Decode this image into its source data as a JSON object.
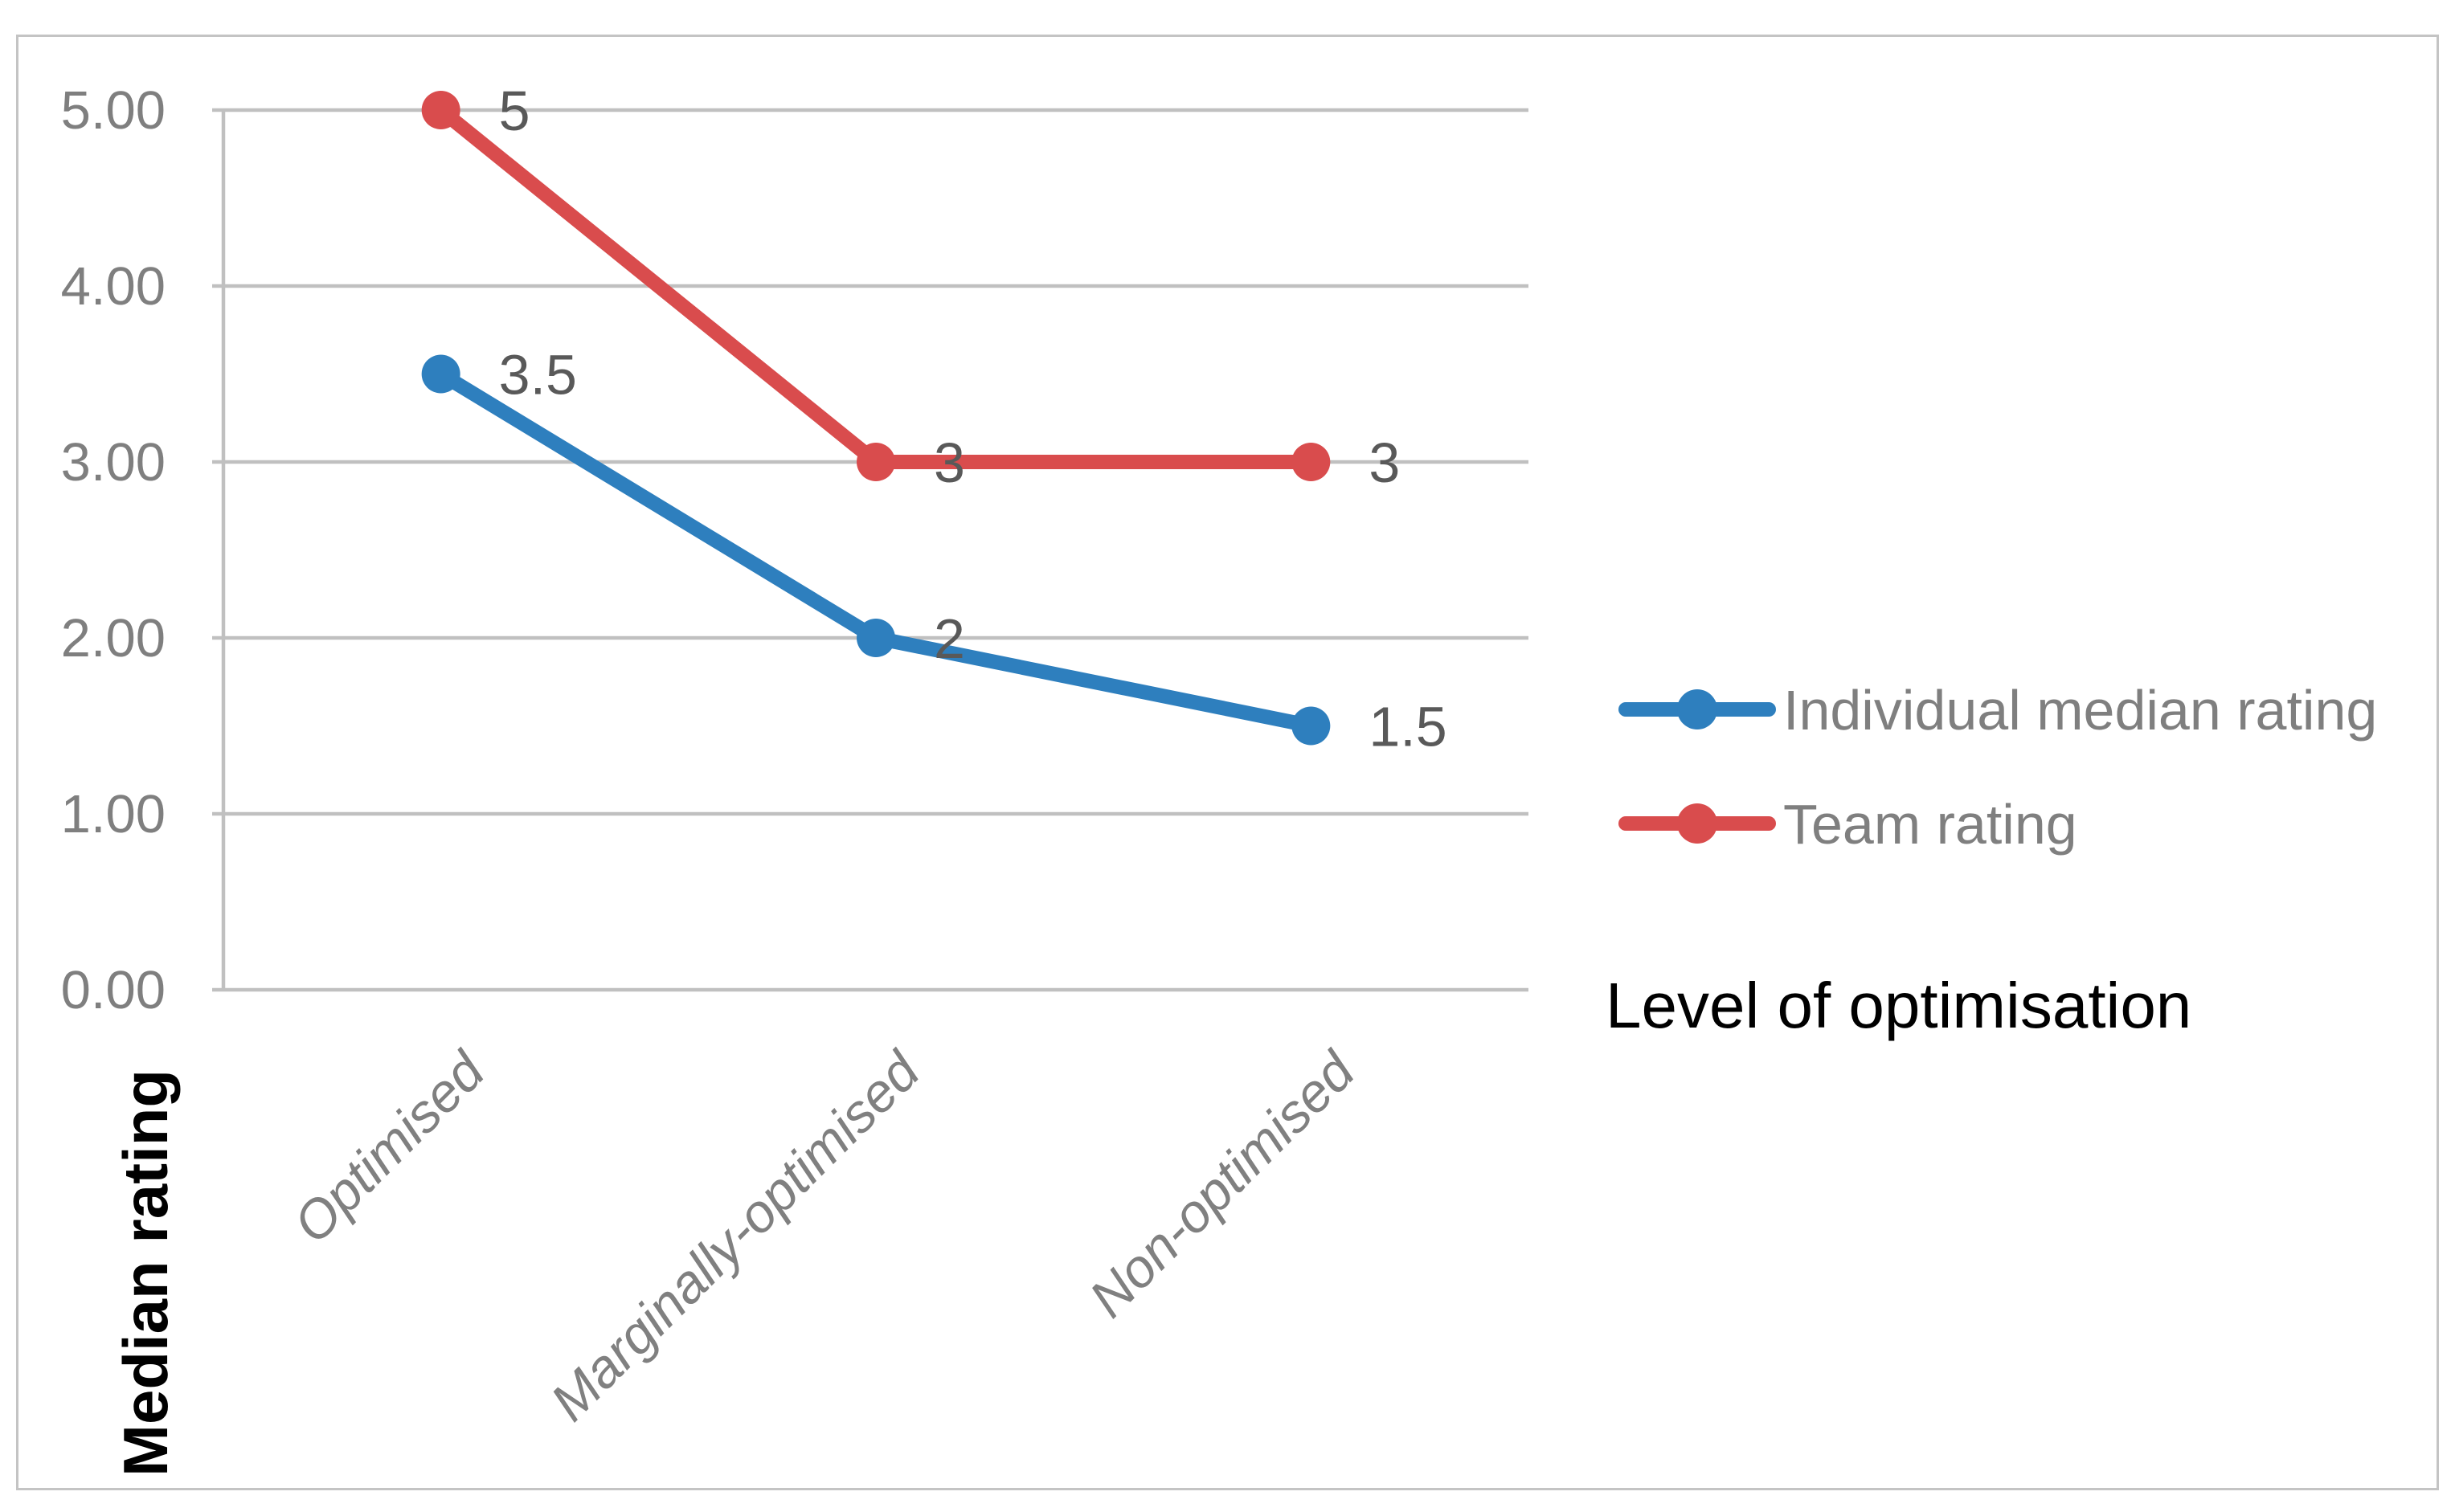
{
  "chart_data": {
    "type": "line",
    "title": "",
    "categories": [
      "Optimised",
      "Marginally-optimised",
      "Non-optimised"
    ],
    "series": [
      {
        "name": "Individual median rating",
        "values": [
          3.5,
          2,
          1.5
        ],
        "data_labels": [
          "3.5",
          "2",
          "1.5"
        ],
        "color": "#2E7FBE"
      },
      {
        "name": "Team rating",
        "values": [
          5,
          3,
          3
        ],
        "data_labels": [
          "5",
          "3",
          "3"
        ],
        "color": "#D94C4D"
      }
    ],
    "xlabel": "Level of optimisation",
    "ylabel": "Median rating",
    "y_ticks": [
      "0.00",
      "1.00",
      "2.00",
      "3.00",
      "4.00",
      "5.00"
    ],
    "ylim": [
      0,
      5
    ],
    "grid": true,
    "legend_position": "right",
    "marker": "circle",
    "colors": {
      "gridline": "#C0C0C0",
      "axis_line": "#C0C0C0",
      "tick_label": "#7F7F7F",
      "category_label": "#808080",
      "data_label": "#595959",
      "legend_label": "#7F7F7F",
      "axis_title": "#000000",
      "figure_border": "#C4C4C4",
      "background": "#FFFFFF"
    }
  }
}
